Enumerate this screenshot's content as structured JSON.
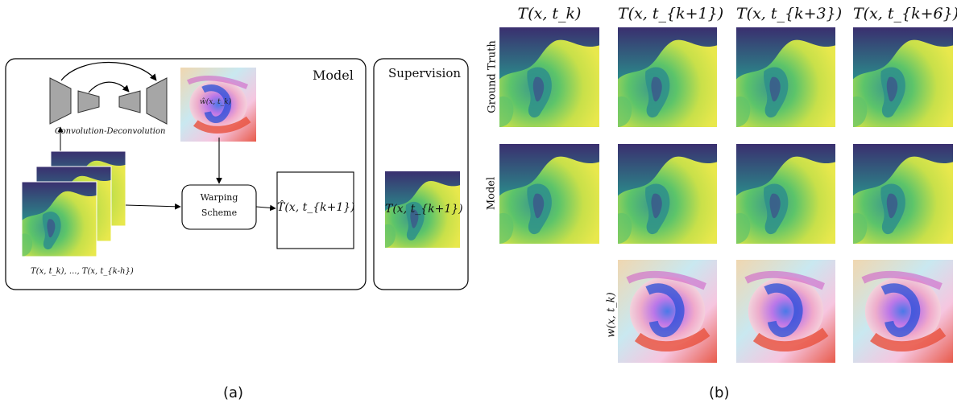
{
  "panel_a": {
    "model_label": "Model",
    "supervision_label": "Supervision",
    "conv_label": "Convolution-Deconvolution",
    "warp_line1": "Warping",
    "warp_line2": "Scheme",
    "input_label": "T(x, t_k), ..., T(x, t_{k-h})",
    "warp_field_label": "ŵ(x, t_k)",
    "pred_label": "T̂(x, t_{k+1})",
    "supervision_field_label": "T(x, t_{k+1})",
    "caption": "(a)"
  },
  "panel_b": {
    "column_titles": [
      "T(x, t_k)",
      "T(x, t_{k+1})",
      "T(x, t_{k+3})",
      "T(x, t_{k+6})"
    ],
    "row_labels": [
      "Ground Truth",
      "Model",
      "w(x, t_k)"
    ],
    "caption": "(b)"
  },
  "colors": {
    "viridis_dark": "#3b2a6e",
    "viridis_teal": "#2a8c8a",
    "viridis_green": "#4cbf6a",
    "viridis_yellow": "#e5e54a",
    "arrow": "#000000",
    "block_gray": "#a6a6a6"
  }
}
